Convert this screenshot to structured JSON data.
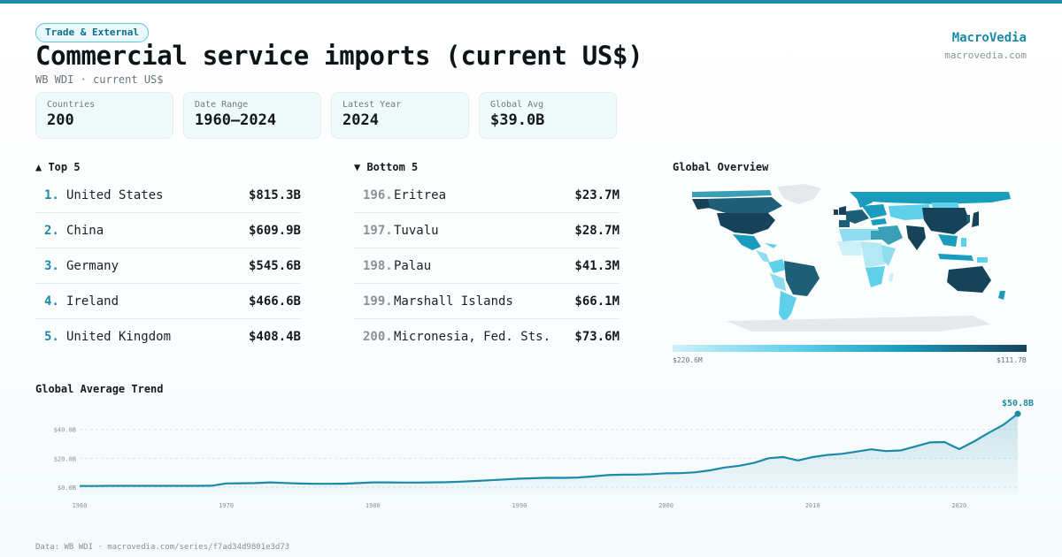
{
  "header": {
    "tag": "Trade & External",
    "title": "Commercial service imports (current US$)",
    "subtitle": "WB WDI · current US$"
  },
  "brand": {
    "name": "MacroVedia",
    "url": "macrovedia.com"
  },
  "stats": [
    {
      "label": "Countries",
      "value": "200"
    },
    {
      "label": "Date Range",
      "value": "1960–2024"
    },
    {
      "label": "Latest Year",
      "value": "2024"
    },
    {
      "label": "Global Avg",
      "value": "$39.0B"
    }
  ],
  "top5": {
    "heading": "▲ Top 5",
    "items": [
      {
        "rank": "1.",
        "name": "United States",
        "value": "$815.3B"
      },
      {
        "rank": "2.",
        "name": "China",
        "value": "$609.9B"
      },
      {
        "rank": "3.",
        "name": "Germany",
        "value": "$545.6B"
      },
      {
        "rank": "4.",
        "name": "Ireland",
        "value": "$466.6B"
      },
      {
        "rank": "5.",
        "name": "United Kingdom",
        "value": "$408.4B"
      }
    ]
  },
  "bottom5": {
    "heading": "▼ Bottom 5",
    "items": [
      {
        "rank": "196.",
        "name": "Eritrea",
        "value": "$23.7M"
      },
      {
        "rank": "197.",
        "name": "Tuvalu",
        "value": "$28.7M"
      },
      {
        "rank": "198.",
        "name": "Palau",
        "value": "$41.3M"
      },
      {
        "rank": "199.",
        "name": "Marshall Islands",
        "value": "$66.1M"
      },
      {
        "rank": "200.",
        "name": "Micronesia, Fed. Sts.",
        "value": "$73.6M"
      }
    ]
  },
  "map": {
    "heading": "Global Overview",
    "legend_low": "$220.6M",
    "legend_high": "$111.7B",
    "colors": [
      "#cdf1f8",
      "#5fd0ea",
      "#1a9cbd",
      "#16425a"
    ],
    "no_data_color": "#e6e9ec"
  },
  "trend": {
    "heading": "Global Average Trend",
    "end_label": "$50.8B"
  },
  "chart_data": {
    "type": "area",
    "title": "Global Average Trend",
    "xlabel": "",
    "ylabel": "",
    "x": [
      1960,
      1961,
      1962,
      1963,
      1964,
      1965,
      1966,
      1967,
      1968,
      1969,
      1970,
      1971,
      1972,
      1973,
      1974,
      1975,
      1976,
      1977,
      1978,
      1979,
      1980,
      1981,
      1982,
      1983,
      1984,
      1985,
      1986,
      1987,
      1988,
      1989,
      1990,
      1991,
      1992,
      1993,
      1994,
      1995,
      1996,
      1997,
      1998,
      1999,
      2000,
      2001,
      2002,
      2003,
      2004,
      2005,
      2006,
      2007,
      2008,
      2009,
      2010,
      2011,
      2012,
      2013,
      2014,
      2015,
      2016,
      2017,
      2018,
      2019,
      2020,
      2021,
      2022,
      2023,
      2024
    ],
    "values": [
      0.8,
      0.8,
      0.9,
      0.9,
      0.9,
      0.9,
      0.9,
      0.9,
      0.9,
      1.0,
      2.6,
      2.7,
      2.8,
      3.3,
      2.9,
      2.5,
      2.3,
      2.3,
      2.4,
      2.8,
      3.3,
      3.3,
      3.2,
      3.2,
      3.3,
      3.4,
      3.8,
      4.3,
      4.8,
      5.3,
      5.9,
      6.2,
      6.5,
      6.4,
      6.7,
      7.4,
      8.3,
      8.6,
      8.7,
      9.0,
      9.6,
      9.7,
      10.3,
      11.6,
      13.6,
      14.8,
      16.8,
      20.0,
      20.9,
      18.5,
      20.8,
      22.3,
      23.1,
      24.6,
      26.2,
      25.0,
      25.4,
      28.1,
      31.0,
      31.2,
      26.3,
      31.5,
      37.5,
      43.0,
      50.8
    ],
    "ytick_labels": [
      "$0.0B",
      "$20.0B",
      "$40.0B"
    ],
    "yticks": [
      0,
      20,
      40
    ],
    "xtick_labels": [
      "1960",
      "1970",
      "1980",
      "1990",
      "2000",
      "2010",
      "2020"
    ],
    "xticks": [
      1960,
      1970,
      1980,
      1990,
      2000,
      2010,
      2020
    ],
    "ylim": [
      0,
      50.8
    ],
    "xlim": [
      1960,
      2024
    ],
    "grid": true,
    "unit": "B US$",
    "color": "#1b8aa8"
  }
}
